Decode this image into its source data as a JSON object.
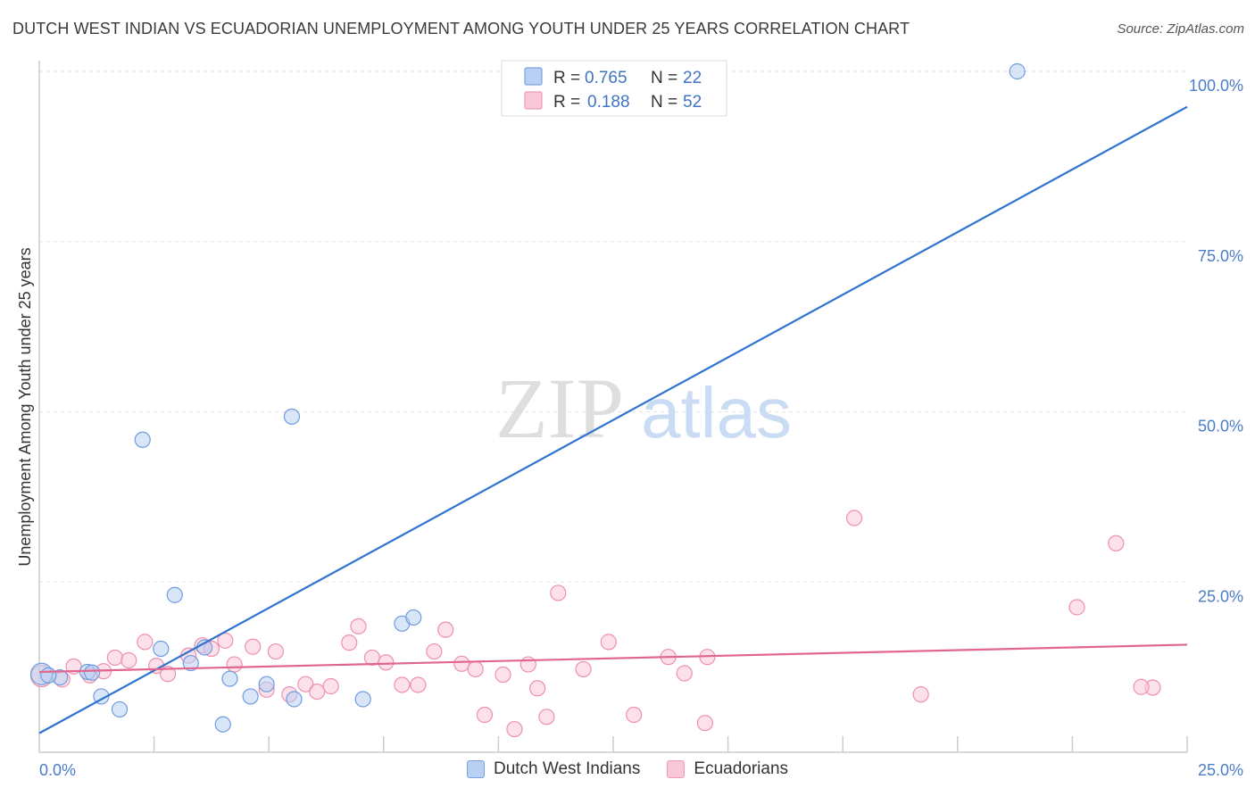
{
  "chart_data": {
    "type": "scatter",
    "title": "DUTCH WEST INDIAN VS ECUADORIAN UNEMPLOYMENT AMONG YOUTH UNDER 25 YEARS CORRELATION CHART",
    "source": "Source: ZipAtlas.com",
    "xlabel": "",
    "ylabel": "Unemployment Among Youth under 25 years",
    "xlim": [
      0,
      25
    ],
    "ylim": [
      0,
      100
    ],
    "x_tick_labels": [
      "0.0%",
      "25.0%"
    ],
    "y_ticks": [
      25,
      50,
      75,
      100
    ],
    "y_tick_labels": [
      "25.0%",
      "50.0%",
      "75.0%",
      "100.0%"
    ],
    "grid": true,
    "watermark": "ZIPatlas",
    "legend": {
      "placement": "top-center",
      "entries": [
        {
          "r_label": "R =",
          "r_value": "0.765",
          "n_label": "N =",
          "n_value": "22",
          "color": "#6f9be0"
        },
        {
          "r_label": "R =",
          "r_value": "0.188",
          "n_label": "N =",
          "n_value": "52",
          "color": "#ee8fb0"
        }
      ]
    },
    "series": [
      {
        "name": "Dutch West Indians",
        "color": "#6f9be0",
        "fill": "#b8d1f3",
        "trend": {
          "x0": 0,
          "y0": 2.8,
          "x1": 25,
          "y1": 94.8
        },
        "points": [
          [
            0.05,
            11.5
          ],
          [
            0.45,
            11.0
          ],
          [
            1.05,
            11.8
          ],
          [
            1.35,
            8.2
          ],
          [
            1.75,
            6.3
          ],
          [
            2.25,
            45.9
          ],
          [
            2.65,
            15.2
          ],
          [
            2.95,
            23.1
          ],
          [
            3.3,
            13.1
          ],
          [
            3.6,
            15.4
          ],
          [
            4.0,
            4.1
          ],
          [
            4.15,
            10.8
          ],
          [
            4.6,
            8.2
          ],
          [
            4.95,
            10.0
          ],
          [
            5.5,
            49.3
          ],
          [
            5.55,
            7.8
          ],
          [
            7.05,
            7.8
          ],
          [
            7.9,
            18.9
          ],
          [
            8.15,
            19.8
          ],
          [
            21.3,
            100.0
          ],
          [
            1.15,
            11.7
          ],
          [
            0.2,
            11.3
          ]
        ]
      },
      {
        "name": "Ecuadorians",
        "color": "#ee8fb0",
        "fill": "#f9c8d8",
        "trend": {
          "x0": 0,
          "y0": 11.8,
          "x1": 25,
          "y1": 15.8
        },
        "points": [
          [
            0.05,
            11.2
          ],
          [
            0.5,
            10.7
          ],
          [
            0.75,
            12.6
          ],
          [
            1.1,
            11.3
          ],
          [
            1.4,
            11.9
          ],
          [
            1.65,
            13.9
          ],
          [
            1.95,
            13.5
          ],
          [
            2.3,
            16.2
          ],
          [
            2.55,
            12.7
          ],
          [
            2.8,
            11.5
          ],
          [
            3.25,
            14.2
          ],
          [
            3.55,
            15.7
          ],
          [
            3.75,
            15.2
          ],
          [
            4.05,
            16.4
          ],
          [
            4.25,
            12.9
          ],
          [
            4.65,
            15.5
          ],
          [
            4.95,
            9.2
          ],
          [
            5.15,
            14.8
          ],
          [
            5.45,
            8.5
          ],
          [
            5.8,
            10.0
          ],
          [
            6.05,
            8.9
          ],
          [
            6.35,
            9.7
          ],
          [
            6.75,
            16.1
          ],
          [
            6.95,
            18.5
          ],
          [
            7.25,
            13.9
          ],
          [
            7.55,
            13.2
          ],
          [
            7.9,
            9.9
          ],
          [
            8.25,
            9.9
          ],
          [
            8.6,
            14.8
          ],
          [
            8.85,
            18.0
          ],
          [
            9.2,
            13.0
          ],
          [
            9.5,
            12.2
          ],
          [
            9.7,
            5.5
          ],
          [
            10.1,
            11.4
          ],
          [
            10.35,
            3.4
          ],
          [
            10.65,
            12.9
          ],
          [
            10.85,
            9.4
          ],
          [
            11.3,
            23.4
          ],
          [
            11.05,
            5.2
          ],
          [
            11.85,
            12.2
          ],
          [
            12.4,
            16.2
          ],
          [
            12.95,
            5.5
          ],
          [
            13.7,
            14.0
          ],
          [
            14.05,
            11.6
          ],
          [
            14.5,
            4.3
          ],
          [
            14.55,
            14.0
          ],
          [
            17.75,
            34.4
          ],
          [
            19.2,
            8.5
          ],
          [
            22.6,
            21.3
          ],
          [
            23.45,
            30.7
          ],
          [
            24.25,
            9.5
          ],
          [
            24.0,
            9.6
          ]
        ]
      }
    ]
  }
}
